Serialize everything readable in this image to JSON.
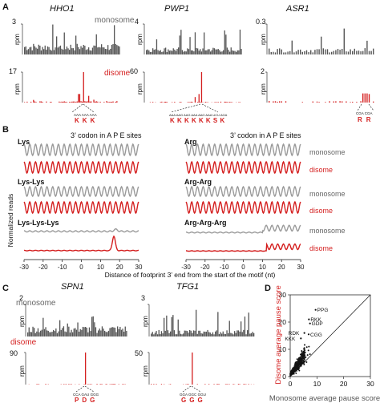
{
  "colors": {
    "mono": "#555555",
    "di": "#d41f1f",
    "black": "#111111",
    "gray": "#9a9a9a"
  },
  "panels": {
    "a": "A",
    "b": "B",
    "c": "C",
    "d": "D"
  },
  "panel_a": {
    "units": "rpm",
    "monosome_label": "monosome",
    "disome_label": "disome",
    "genes": [
      {
        "name": "HHO1",
        "mono_ymax": "3",
        "di_ymax": "17",
        "codons": [
          "AAA",
          "AAA",
          "AAA"
        ],
        "aa": [
          "K",
          "K",
          "K"
        ]
      },
      {
        "name": "PWP1",
        "mono_ymax": "4",
        "di_ymax": "60",
        "codons": [
          "AAA",
          "AAG",
          "AAG",
          "AAA",
          "AAG",
          "AAA",
          "UCU",
          "AGA"
        ],
        "aa": [
          "K",
          "K",
          "K",
          "K",
          "K",
          "K",
          "S",
          "K"
        ]
      },
      {
        "name": "ASR1",
        "mono_ymax": "0.3",
        "di_ymax": "2",
        "codons": [
          "CGA",
          "CGA"
        ],
        "aa": [
          "R",
          "R"
        ]
      }
    ]
  },
  "panel_b": {
    "header": "3’ codon in A P E sites",
    "ylabel": "Normalized reads",
    "xlabel": "Distance of footprint 3’ end from the start of the motif (nt)",
    "xticks": [
      "-30",
      "-20",
      "-10",
      "0",
      "10",
      "20",
      "30"
    ],
    "monosome_label": "monosome",
    "disome_label": "disome",
    "left_motifs": [
      "Lys",
      "Lys-Lys",
      "Lys-Lys-Lys"
    ],
    "right_motifs": [
      "Arg",
      "Arg-Arg",
      "Arg-Arg-Arg"
    ]
  },
  "panel_c": {
    "units": "rpm",
    "monosome_label": "monosome",
    "disome_label": "disome",
    "genes": [
      {
        "name": "SPN1",
        "mono_ymax": "2",
        "di_ymax": "90",
        "codons": [
          "CCA",
          "GAU",
          "GGG"
        ],
        "aa": [
          "P",
          "D",
          "G"
        ]
      },
      {
        "name": "TFG1",
        "mono_ymax": "3",
        "di_ymax": "50",
        "codons": [
          "GGA",
          "GGC",
          "GGU"
        ],
        "aa": [
          "G",
          "G",
          "G"
        ]
      }
    ]
  },
  "chart_data": [
    {
      "type": "line",
      "title": "3’ codon in A P E sites",
      "xlabel": "Distance of footprint 3’ end from the start of the motif (nt)",
      "ylabel": "Normalized reads",
      "xlim": [
        -30,
        30
      ],
      "xticks": [
        -30,
        -20,
        -10,
        0,
        10,
        20,
        30
      ],
      "series": [
        {
          "name": "Lys monosome",
          "pattern": "3-nt periodic, uniform",
          "peak": null
        },
        {
          "name": "Lys disome",
          "pattern": "3-nt periodic, uniform",
          "peak": null
        },
        {
          "name": "Lys-Lys monosome",
          "pattern": "3-nt periodic, uniform",
          "peak": null
        },
        {
          "name": "Lys-Lys disome",
          "pattern": "3-nt periodic, uniform",
          "peak": null
        },
        {
          "name": "Lys-Lys-Lys monosome",
          "pattern": "flat with small bump",
          "peak": 18
        },
        {
          "name": "Lys-Lys-Lys disome",
          "pattern": "flat with sharp peak",
          "peak": 17
        },
        {
          "name": "Arg monosome",
          "pattern": "3-nt periodic, uniform",
          "peak": null
        },
        {
          "name": "Arg disome",
          "pattern": "3-nt periodic, uniform",
          "peak": null
        },
        {
          "name": "Arg-Arg monosome",
          "pattern": "3-nt periodic, uniform",
          "peak": null
        },
        {
          "name": "Arg-Arg disome",
          "pattern": "3-nt periodic, uniform",
          "peak": null
        },
        {
          "name": "Arg-Arg-Arg monosome",
          "pattern": "flat with peaks after 10",
          "peak": 12
        },
        {
          "name": "Arg-Arg-Arg disome",
          "pattern": "flat with peaks after 10",
          "peak": 18
        }
      ]
    },
    {
      "type": "scatter",
      "xlabel": "Monosome average pause score",
      "ylabel": "Disome average pause score",
      "xlim": [
        0,
        30
      ],
      "ylim": [
        0,
        30
      ],
      "xticks": [
        0,
        10,
        20,
        30
      ],
      "yticks": [
        0,
        10,
        20,
        30
      ],
      "diagonal": true,
      "labeled_points": [
        {
          "label": "PPG",
          "x": 9.5,
          "y": 24.5
        },
        {
          "label": "RKK",
          "x": 7.0,
          "y": 21.0
        },
        {
          "label": "GDP",
          "x": 7.4,
          "y": 19.5
        },
        {
          "label": "RDK",
          "x": 5.3,
          "y": 16.0
        },
        {
          "label": "CGG",
          "x": 6.9,
          "y": 15.5
        },
        {
          "label": "KKK",
          "x": 4.0,
          "y": 14.0
        }
      ],
      "bulk_points": [
        [
          1.2,
          1.5
        ],
        [
          2.1,
          3.2
        ],
        [
          3.4,
          2.2
        ],
        [
          1.8,
          4.6
        ],
        [
          2.9,
          5.8
        ],
        [
          4.1,
          3.9
        ],
        [
          0.8,
          0.9
        ],
        [
          3.7,
          6.9
        ],
        [
          5.2,
          4.4
        ],
        [
          2.4,
          2.1
        ],
        [
          4.6,
          7.8
        ],
        [
          1.5,
          2.8
        ],
        [
          6.1,
          5.3
        ],
        [
          3.1,
          4.1
        ],
        [
          5.6,
          8.9
        ],
        [
          2.6,
          6.4
        ],
        [
          4.9,
          5.7
        ],
        [
          1.1,
          2.3
        ],
        [
          3.9,
          8.1
        ],
        [
          6.8,
          9.6
        ],
        [
          2.2,
          1.2
        ],
        [
          5.1,
          6.6
        ],
        [
          3.3,
          3.0
        ],
        [
          7.4,
          8.2
        ],
        [
          4.3,
          9.4
        ],
        [
          1.9,
          3.8
        ],
        [
          6.2,
          10.8
        ],
        [
          2.7,
          4.9
        ],
        [
          5.8,
          7.1
        ],
        [
          3.6,
          5.2
        ],
        [
          0.6,
          1.7
        ],
        [
          4.7,
          4.8
        ],
        [
          2.0,
          5.1
        ],
        [
          6.5,
          7.9
        ],
        [
          3.0,
          2.6
        ],
        [
          5.4,
          11.6
        ],
        [
          1.4,
          1.0
        ],
        [
          4.0,
          6.2
        ],
        [
          7.0,
          11.0
        ],
        [
          2.5,
          3.5
        ]
      ]
    }
  ]
}
